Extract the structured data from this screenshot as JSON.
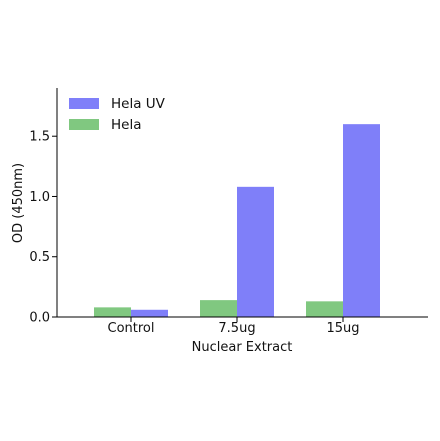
{
  "chart_data": {
    "type": "bar",
    "title": "",
    "xlabel": "Nuclear Extract",
    "ylabel": "OD (450nm)",
    "categories": [
      "Control",
      "7.5ug",
      "15ug"
    ],
    "ylim": [
      0,
      1.9
    ],
    "yticks": [
      0.0,
      0.5,
      1.0,
      1.5
    ],
    "ytick_labels": [
      "0.0",
      "0.5",
      "1.0",
      "1.5"
    ],
    "grid": false,
    "legend": "top-left",
    "series": [
      {
        "name": "Hela",
        "color": "#80c880",
        "values": [
          0.08,
          0.14,
          0.13
        ]
      },
      {
        "name": "Hela UV",
        "color": "#7f7ff9",
        "values": [
          0.06,
          1.08,
          1.6
        ]
      }
    ],
    "legend_order": [
      1,
      0
    ]
  }
}
